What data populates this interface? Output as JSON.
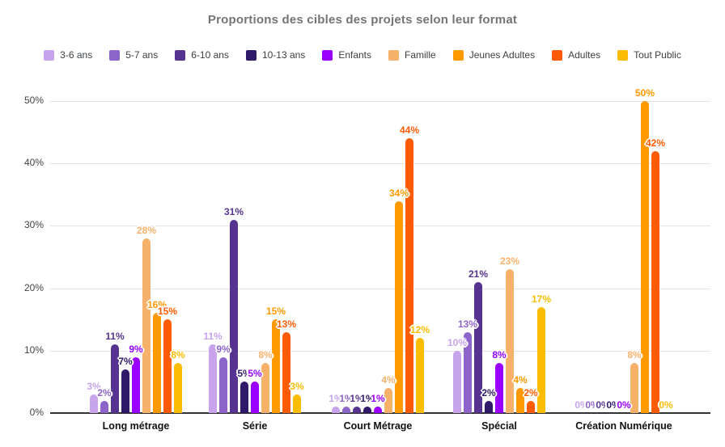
{
  "chart_data": {
    "type": "bar",
    "title": "Proportions des cibles des projets selon leur format",
    "xlabel": "",
    "ylabel": "",
    "categories": [
      "Long métrage",
      "Série",
      "Court Métrage",
      "Spécial",
      "Création Numérique"
    ],
    "series": [
      {
        "name": "3-6 ans",
        "color": "#c7a4ec",
        "values": [
          3,
          11,
          1,
          10,
          0
        ]
      },
      {
        "name": "5-7 ans",
        "color": "#8d64c9",
        "values": [
          2,
          9,
          1,
          13,
          0
        ]
      },
      {
        "name": "6-10 ans",
        "color": "#563390",
        "values": [
          11,
          31,
          1,
          21,
          0
        ]
      },
      {
        "name": "10-13 ans",
        "color": "#2e1a68",
        "values": [
          7,
          5,
          1,
          2,
          0
        ]
      },
      {
        "name": "Enfants",
        "color": "#9900ff",
        "values": [
          9,
          5,
          1,
          8,
          0
        ]
      },
      {
        "name": "Famille",
        "color": "#f6b26b",
        "values": [
          28,
          8,
          4,
          23,
          8
        ]
      },
      {
        "name": "Jeunes Adultes",
        "color": "#ff9900",
        "values": [
          16,
          15,
          34,
          4,
          50
        ]
      },
      {
        "name": "Adultes",
        "color": "#ff5b00",
        "values": [
          15,
          13,
          44,
          2,
          42
        ]
      },
      {
        "name": "Tout Public",
        "color": "#fbbc04",
        "values": [
          8,
          3,
          12,
          17,
          0
        ]
      }
    ],
    "value_suffix": "%",
    "y_ticks": [
      0,
      10,
      20,
      30,
      40,
      50
    ],
    "y_tick_suffix": "%",
    "ylim": [
      0,
      52
    ],
    "grid": true,
    "legend_position": "top",
    "data_labels": true
  }
}
